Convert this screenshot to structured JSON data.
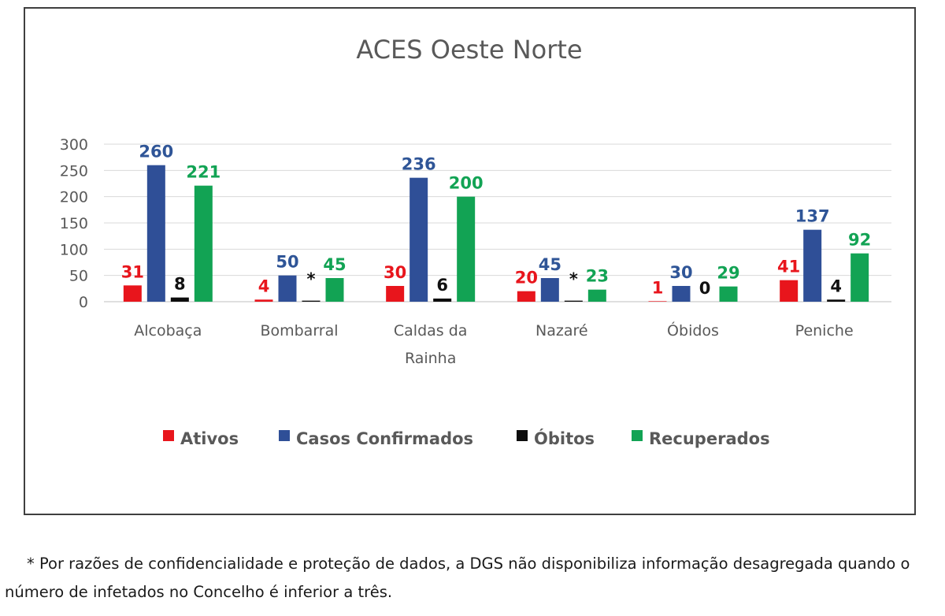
{
  "chart_data": {
    "type": "bar",
    "title": "ACES Oeste Norte",
    "categories": [
      "Alcobaça",
      "Bombarral",
      "Caldas da Rainha",
      "Nazaré",
      "Óbidos",
      "Peniche"
    ],
    "category_lines": [
      [
        "Alcobaça"
      ],
      [
        "Bombarral"
      ],
      [
        "Caldas da",
        "Rainha"
      ],
      [
        "Nazaré"
      ],
      [
        "Óbidos"
      ],
      [
        "Peniche"
      ]
    ],
    "ylim": [
      0,
      300
    ],
    "yticks": [
      0,
      50,
      100,
      150,
      200,
      250,
      300
    ],
    "grid": true,
    "legend_position": "bottom",
    "series": [
      {
        "name": "Ativos",
        "color": "#e8151c",
        "values": [
          31,
          4,
          30,
          20,
          1,
          41
        ],
        "labels": [
          "31",
          "4",
          "30",
          "20",
          "1",
          "41"
        ]
      },
      {
        "name": "Casos Confirmados",
        "color": "#2f4f97",
        "values": [
          260,
          50,
          236,
          45,
          30,
          137
        ],
        "labels": [
          "260",
          "50",
          "236",
          "45",
          "30",
          "137"
        ]
      },
      {
        "name": "Óbitos",
        "color": "#0d0d0d",
        "values": [
          8,
          2,
          6,
          2,
          0,
          4
        ],
        "labels": [
          "8",
          "*",
          "6",
          "*",
          "0",
          "4"
        ]
      },
      {
        "name": "Recuperados",
        "color": "#12a354",
        "values": [
          221,
          45,
          200,
          23,
          29,
          92
        ],
        "labels": [
          "221",
          "45",
          "200",
          "23",
          "29",
          "92"
        ]
      }
    ],
    "label_colors": [
      "#e8151c",
      "#2f5597",
      "#111111",
      "#12a354"
    ]
  },
  "footnote": "* Por razões de confidencialidade e proteção de dados, a DGS não disponibiliza informação desagregada quando o número de infetados no Concelho é inferior a três."
}
